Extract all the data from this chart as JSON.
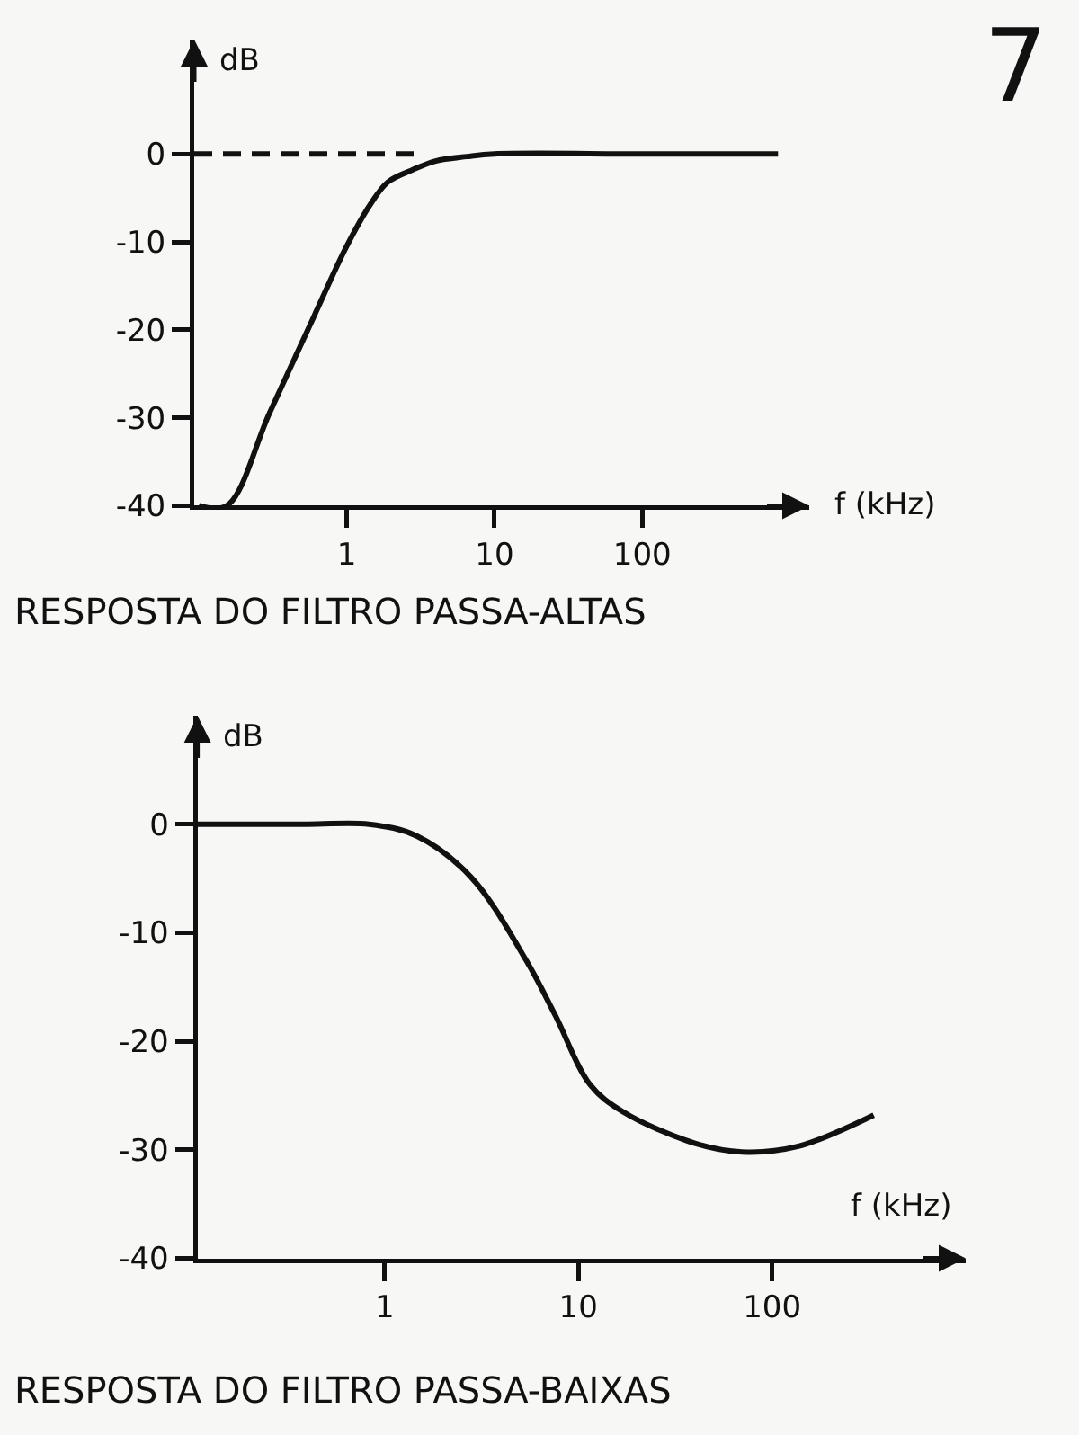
{
  "chart_data": [
    {
      "type": "line",
      "title": "RESPOSTA DO FILTRO PASSA-ALTAS",
      "xlabel": "f (kHz)",
      "ylabel": "dB",
      "annotations": [
        "7"
      ],
      "log": "x",
      "grid": false,
      "marker": "none",
      "xlim": [
        0.093,
        1350
      ],
      "xticks": [
        1,
        10,
        100
      ],
      "ylim": [
        -40,
        13
      ],
      "yticks": [
        0,
        -10,
        -20,
        -30,
        -40
      ],
      "series": [
        {
          "color": "#111111",
          "line_style": "solid",
          "x": [
            0.1,
            0.155,
            0.3,
            0.6,
            1,
            1.45,
            1.9,
            2.8,
            4,
            6.5,
            10,
            100,
            830
          ],
          "values": [
            -40,
            -40,
            -29.5,
            -18.5,
            -10.5,
            -5.7,
            -3.2,
            -1.8,
            -0.8,
            -0.3,
            0,
            0,
            0
          ]
        },
        {
          "color": "#111111",
          "line_style": "dashed",
          "x": [
            0.093,
            3.1
          ],
          "values": [
            0,
            0
          ]
        }
      ]
    },
    {
      "type": "line",
      "title": "RESPOSTA DO FILTRO PASSA-BAIXAS",
      "xlabel": "f (kHz)",
      "ylabel": "dB",
      "log": "x",
      "grid": false,
      "marker": "none",
      "xlim": [
        0.108,
        1000
      ],
      "xticks": [
        1,
        10,
        100
      ],
      "ylim": [
        -40,
        10
      ],
      "yticks": [
        0,
        -10,
        -20,
        -30,
        -40
      ],
      "series": [
        {
          "color": "#111111",
          "line_style": "solid",
          "x": [
            0.108,
            0.4,
            0.83,
            1.47,
            2.8,
            5.4,
            7.6,
            11.5,
            17,
            40,
            70,
            135,
            335
          ],
          "values": [
            0,
            0,
            0,
            -1.1,
            -4.9,
            -12.6,
            -17.6,
            -24,
            -26.5,
            -29.4,
            -30.2,
            -29.7,
            -26.8
          ]
        }
      ]
    }
  ]
}
